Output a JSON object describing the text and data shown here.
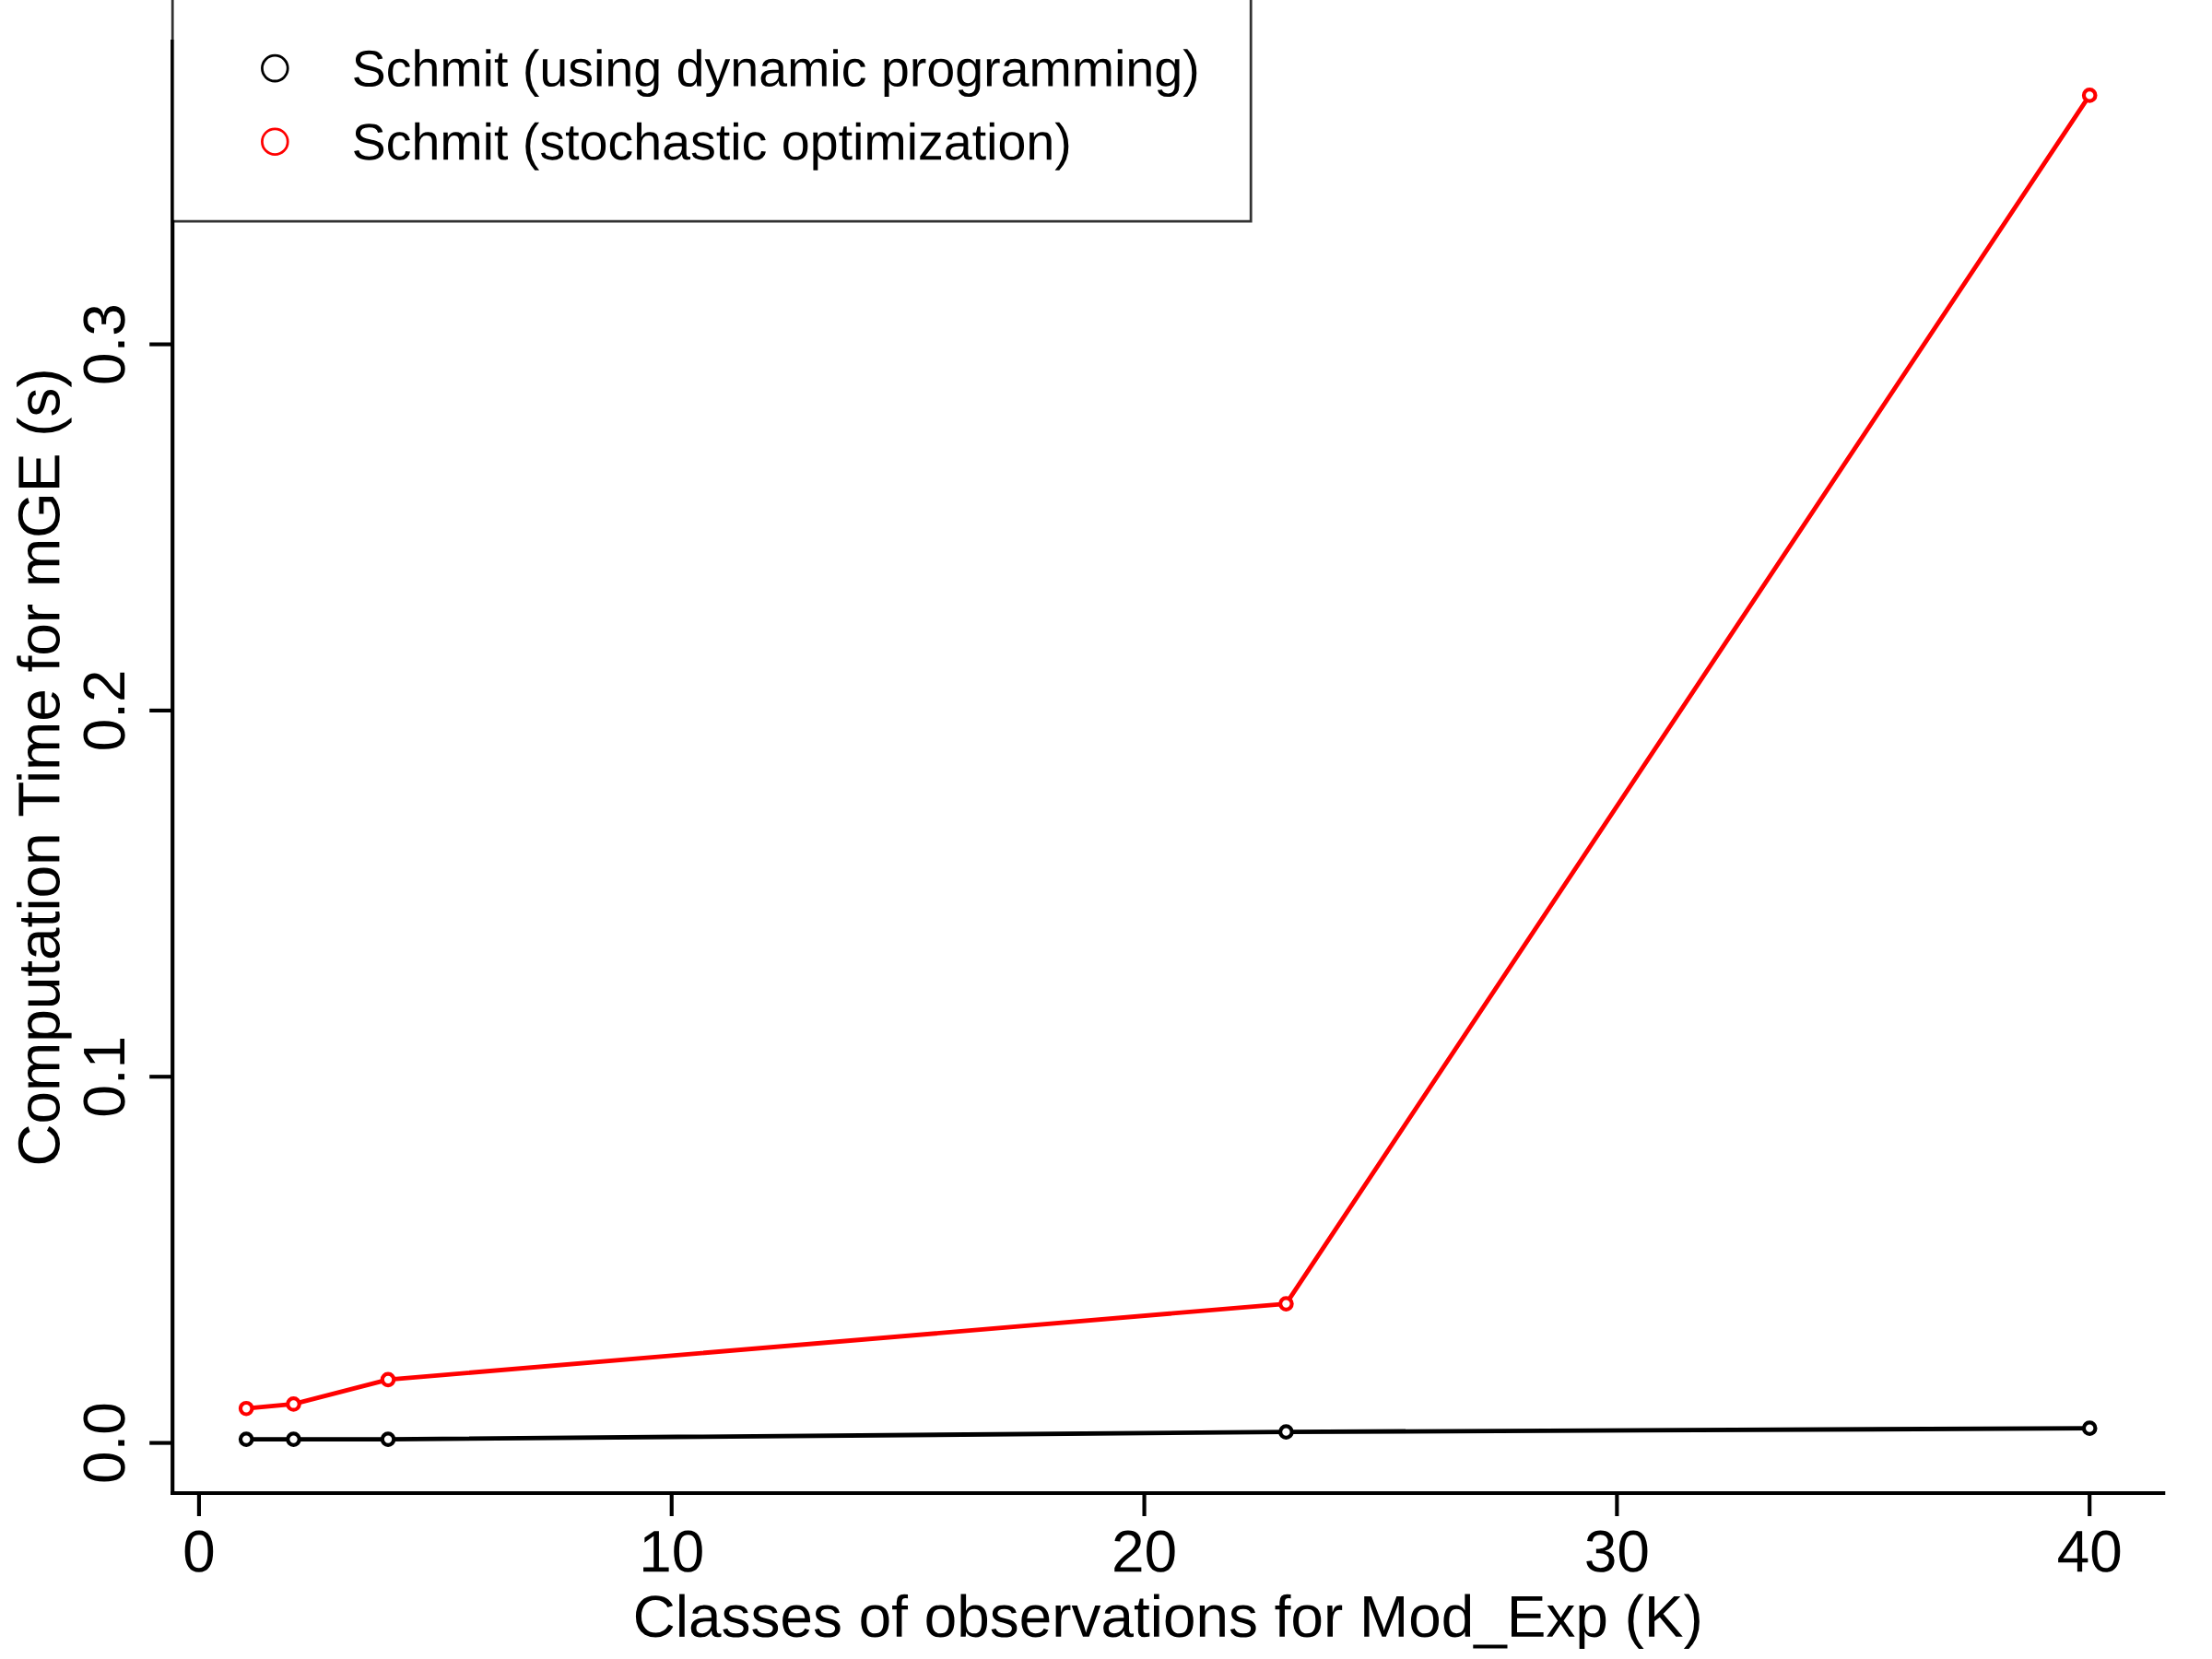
{
  "chart_data": {
    "type": "line",
    "xlabel": "Classes of observations for Mod_Exp (K)",
    "ylabel": "Computation Time for mGE (s)",
    "x": [
      1,
      2,
      4,
      23,
      40
    ],
    "series": [
      {
        "name": "Schmit (using dynamic programming)",
        "color": "#000000",
        "values": [
          0.001,
          0.001,
          0.001,
          0.003,
          0.004
        ]
      },
      {
        "name": "Schmit (stochastic optimization)",
        "color": "#ff0000",
        "values": [
          0.0094,
          0.0106,
          0.0173,
          0.038,
          0.368
        ]
      }
    ],
    "xlim": [
      -0.56,
      41.56
    ],
    "ylim": [
      -0.0137,
      0.3827
    ],
    "xticks": [
      0,
      10,
      20,
      30,
      40
    ],
    "yticks": [
      {
        "value": 0,
        "label": "0.0"
      },
      0.1,
      0.2,
      0.3
    ],
    "grid": false,
    "legend": "top left",
    "marker": "circle",
    "line_style": "solid"
  }
}
